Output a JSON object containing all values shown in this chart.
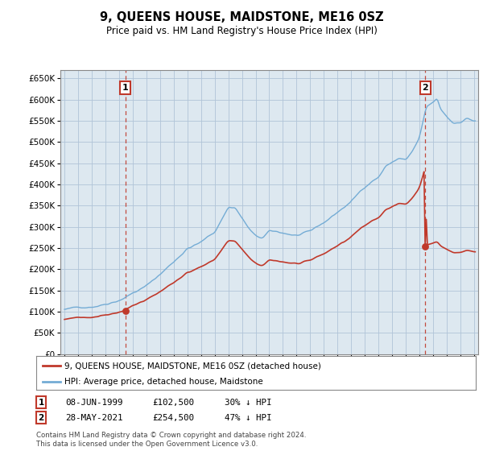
{
  "title": "9, QUEENS HOUSE, MAIDSTONE, ME16 0SZ",
  "subtitle": "Price paid vs. HM Land Registry's House Price Index (HPI)",
  "legend_line1": "9, QUEENS HOUSE, MAIDSTONE, ME16 0SZ (detached house)",
  "legend_line2": "HPI: Average price, detached house, Maidstone",
  "annotation1_date": "08-JUN-1999",
  "annotation1_price": "£102,500",
  "annotation1_pct": "30% ↓ HPI",
  "annotation2_date": "28-MAY-2021",
  "annotation2_price": "£254,500",
  "annotation2_pct": "47% ↓ HPI",
  "footer": "Contains HM Land Registry data © Crown copyright and database right 2024.\nThis data is licensed under the Open Government Licence v3.0.",
  "hpi_color": "#74acd5",
  "price_color": "#c0392b",
  "marker_color": "#c0392b",
  "annotation_box_color": "#c0392b",
  "vline_color": "#c0392b",
  "plot_bg_color": "#dde8f0",
  "background_color": "#ffffff",
  "grid_color": "#b0c4d8",
  "ylim_min": 0,
  "ylim_max": 670000,
  "sale1_year": 1999.45,
  "sale1_price": 102500,
  "sale2_year": 2021.42,
  "sale2_price": 254500
}
